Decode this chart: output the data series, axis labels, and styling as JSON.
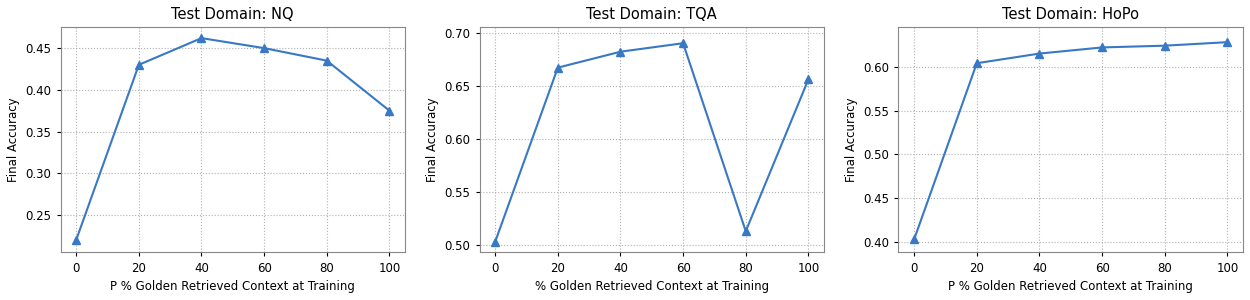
{
  "plots": [
    {
      "title": "Test Domain: NQ",
      "xlabel": "P % Golden Retrieved Context at Training",
      "ylabel": "Final Accuracy",
      "x": [
        0,
        20,
        40,
        60,
        80,
        100
      ],
      "y": [
        0.22,
        0.43,
        0.462,
        0.45,
        0.435,
        0.375
      ],
      "ylim": [
        0.205,
        0.475
      ],
      "yticks": [
        0.25,
        0.3,
        0.35,
        0.4,
        0.45
      ]
    },
    {
      "title": "Test Domain: TQA",
      "xlabel": "% Golden Retrieved Context at Training",
      "ylabel": "Final Accuracy",
      "x": [
        0,
        20,
        40,
        60,
        80,
        100
      ],
      "y": [
        0.503,
        0.667,
        0.682,
        0.69,
        0.513,
        0.656
      ],
      "ylim": [
        0.493,
        0.705
      ],
      "yticks": [
        0.5,
        0.55,
        0.6,
        0.65,
        0.7
      ]
    },
    {
      "title": "Test Domain: HoPo",
      "xlabel": "P % Golden Retrieved Context at Training",
      "ylabel": "Final Accuracy",
      "x": [
        0,
        20,
        40,
        60,
        80,
        100
      ],
      "y": [
        0.403,
        0.604,
        0.615,
        0.622,
        0.624,
        0.628
      ],
      "ylim": [
        0.388,
        0.645
      ],
      "yticks": [
        0.4,
        0.45,
        0.5,
        0.55,
        0.6
      ]
    }
  ],
  "line_color": "#3878c5",
  "marker": "^",
  "markersize": 6,
  "linewidth": 1.5,
  "grid_color": "#b0b0b0",
  "grid_linestyle": ":",
  "grid_linewidth": 0.8,
  "title_fontsize": 10.5,
  "label_fontsize": 8.5,
  "tick_fontsize": 8.5
}
